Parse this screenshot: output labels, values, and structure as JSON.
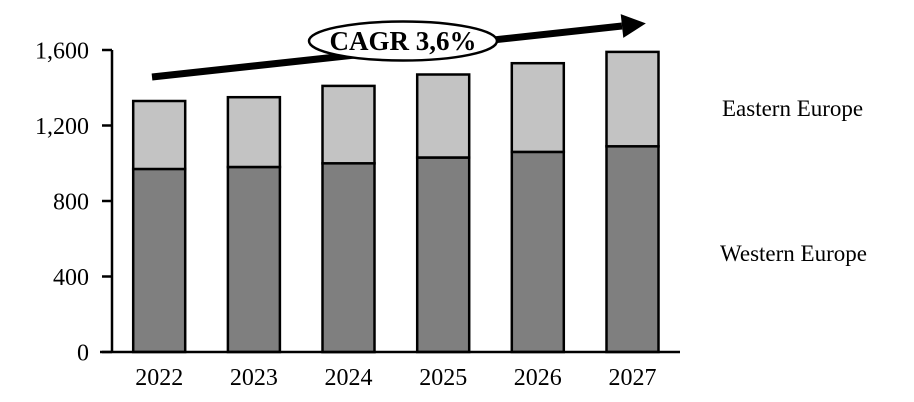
{
  "chart_data": {
    "type": "bar",
    "stacked": true,
    "title": "",
    "categories": [
      "2022",
      "2023",
      "2024",
      "2025",
      "2026",
      "2027"
    ],
    "series": [
      {
        "name": "Western Europe",
        "color": "#7f7f7f",
        "values": [
          970,
          980,
          1000,
          1030,
          1060,
          1090
        ]
      },
      {
        "name": "Eastern Europe",
        "color": "#c3c3c3",
        "values": [
          360,
          370,
          410,
          440,
          470,
          500
        ]
      }
    ],
    "totals": [
      1330,
      1350,
      1410,
      1470,
      1530,
      1590
    ],
    "ylim": [
      0,
      1600
    ],
    "yticks": [
      {
        "value": 0,
        "label": "0"
      },
      {
        "value": 400,
        "label": "400"
      },
      {
        "value": 800,
        "label": "800"
      },
      {
        "value": 1200,
        "label": "1,200"
      },
      {
        "value": 1600,
        "label": "1,600"
      }
    ],
    "xlabel": "",
    "ylabel": "",
    "grid": false,
    "legend_position": "right",
    "bar_border_color": "#000000",
    "annotation": {
      "text": "CAGR 3,6%",
      "shape": "ellipse",
      "arrow": true
    }
  }
}
